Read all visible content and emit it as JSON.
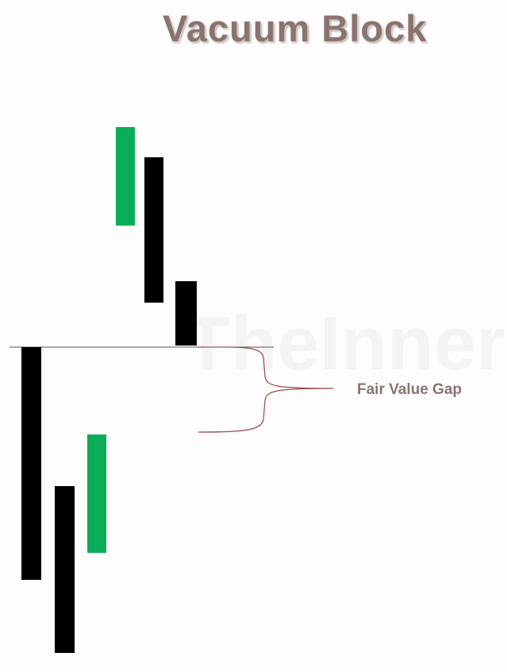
{
  "title": "Vacuum Block",
  "watermark": "TheInnerC",
  "annotation": {
    "label": "Fair Value Gap"
  },
  "colors": {
    "bullish_candle": "#0aad57",
    "bearish_candle": "#000000",
    "title": "#8a7470",
    "reference_line": "#555555",
    "brace": "#9a4a4a"
  },
  "candles": [
    {
      "id": "bearish-1",
      "direction": "bearish"
    },
    {
      "id": "bearish-2",
      "direction": "bearish"
    },
    {
      "id": "bullish-1",
      "direction": "bullish"
    },
    {
      "id": "bullish-2",
      "direction": "bullish"
    },
    {
      "id": "bearish-3",
      "direction": "bearish"
    },
    {
      "id": "bearish-4",
      "direction": "bearish"
    }
  ]
}
